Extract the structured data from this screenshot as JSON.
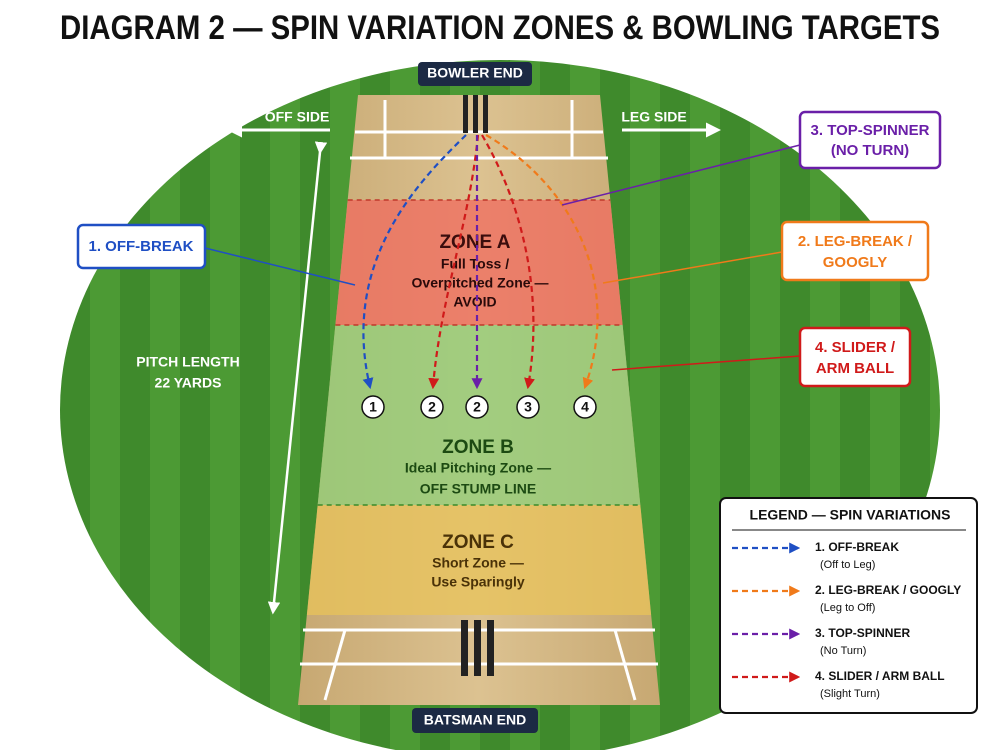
{
  "title": "DIAGRAM 2 — SPIN VARIATION ZONES & BOWLING TARGETS",
  "ends": {
    "bowler": "BOWLER END",
    "batsman": "BATSMAN END"
  },
  "sides": {
    "off": "OFF SIDE",
    "leg": "LEG SIDE"
  },
  "pitch_length": [
    "PITCH LENGTH",
    "22 YARDS"
  ],
  "zones": [
    {
      "name": "ZONE A",
      "lines": [
        "Full Toss /",
        "Overpitched Zone —",
        "AVOID"
      ]
    },
    {
      "name": "ZONE B",
      "lines": [
        "Ideal Pitching Zone —",
        "OFF STUMP LINE"
      ]
    },
    {
      "name": "ZONE C",
      "lines": [
        "Short Zone —",
        "Use Sparingly"
      ]
    }
  ],
  "callouts": [
    {
      "lines": [
        "1. OFF-BREAK"
      ]
    },
    {
      "lines": [
        "3. TOP-SPINNER",
        "(NO TURN)"
      ]
    },
    {
      "lines": [
        "2. LEG-BREAK /",
        "GOOGLY"
      ]
    },
    {
      "lines": [
        "4. SLIDER /",
        "ARM BALL"
      ]
    }
  ],
  "markers": [
    "1",
    "2",
    "2",
    "3",
    "4"
  ],
  "legend": {
    "title": "LEGEND — SPIN VARIATIONS",
    "items": [
      {
        "name": "1. OFF-BREAK",
        "sub": "(Off to Leg)"
      },
      {
        "name": "2. LEG-BREAK / GOOGLY",
        "sub": "(Leg to Off)"
      },
      {
        "name": "3. TOP-SPINNER",
        "sub": "(No Turn)"
      },
      {
        "name": "4. SLIDER / ARM BALL",
        "sub": "(Slight Turn)"
      }
    ]
  }
}
